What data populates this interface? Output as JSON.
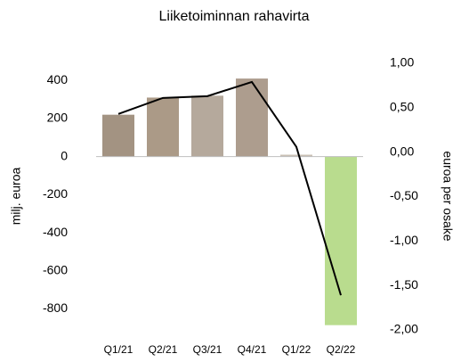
{
  "chart_data": {
    "type": "bar",
    "title": "Liiketoiminnan rahavirta",
    "ylabel": "milj. euroa",
    "y2label": "euroa per osake",
    "categories": [
      "Q1/21",
      "Q2/21",
      "Q3/21",
      "Q4/21",
      "Q1/22",
      "Q2/22"
    ],
    "series": [
      {
        "type": "bar",
        "colors": [
          "#a39382",
          "#ab9a87",
          "#b5a99c",
          "#ad9d8e",
          "#c9bfb4",
          "#b9dc8e"
        ],
        "values": [
          220,
          310,
          320,
          410,
          10,
          -885
        ]
      },
      {
        "type": "line",
        "axis": "y2",
        "color": "#000000",
        "values": [
          0.43,
          0.61,
          0.63,
          0.79,
          0.06,
          -1.61
        ]
      }
    ],
    "ylim": [
      -910,
      490
    ],
    "yticks": [
      400,
      200,
      0,
      -200,
      -400,
      -600,
      -800
    ],
    "y2lim": [
      -2,
      1
    ],
    "y2ticks": [
      {
        "value": 1,
        "label": "1,00"
      },
      {
        "value": 0.5,
        "label": "0,50"
      },
      {
        "value": 0,
        "label": "0,00"
      },
      {
        "value": -0.5,
        "label": "-0,50"
      },
      {
        "value": -1,
        "label": "-1,00"
      },
      {
        "value": -1.5,
        "label": "-1,50"
      },
      {
        "value": -2,
        "label": "-2,00"
      }
    ]
  }
}
